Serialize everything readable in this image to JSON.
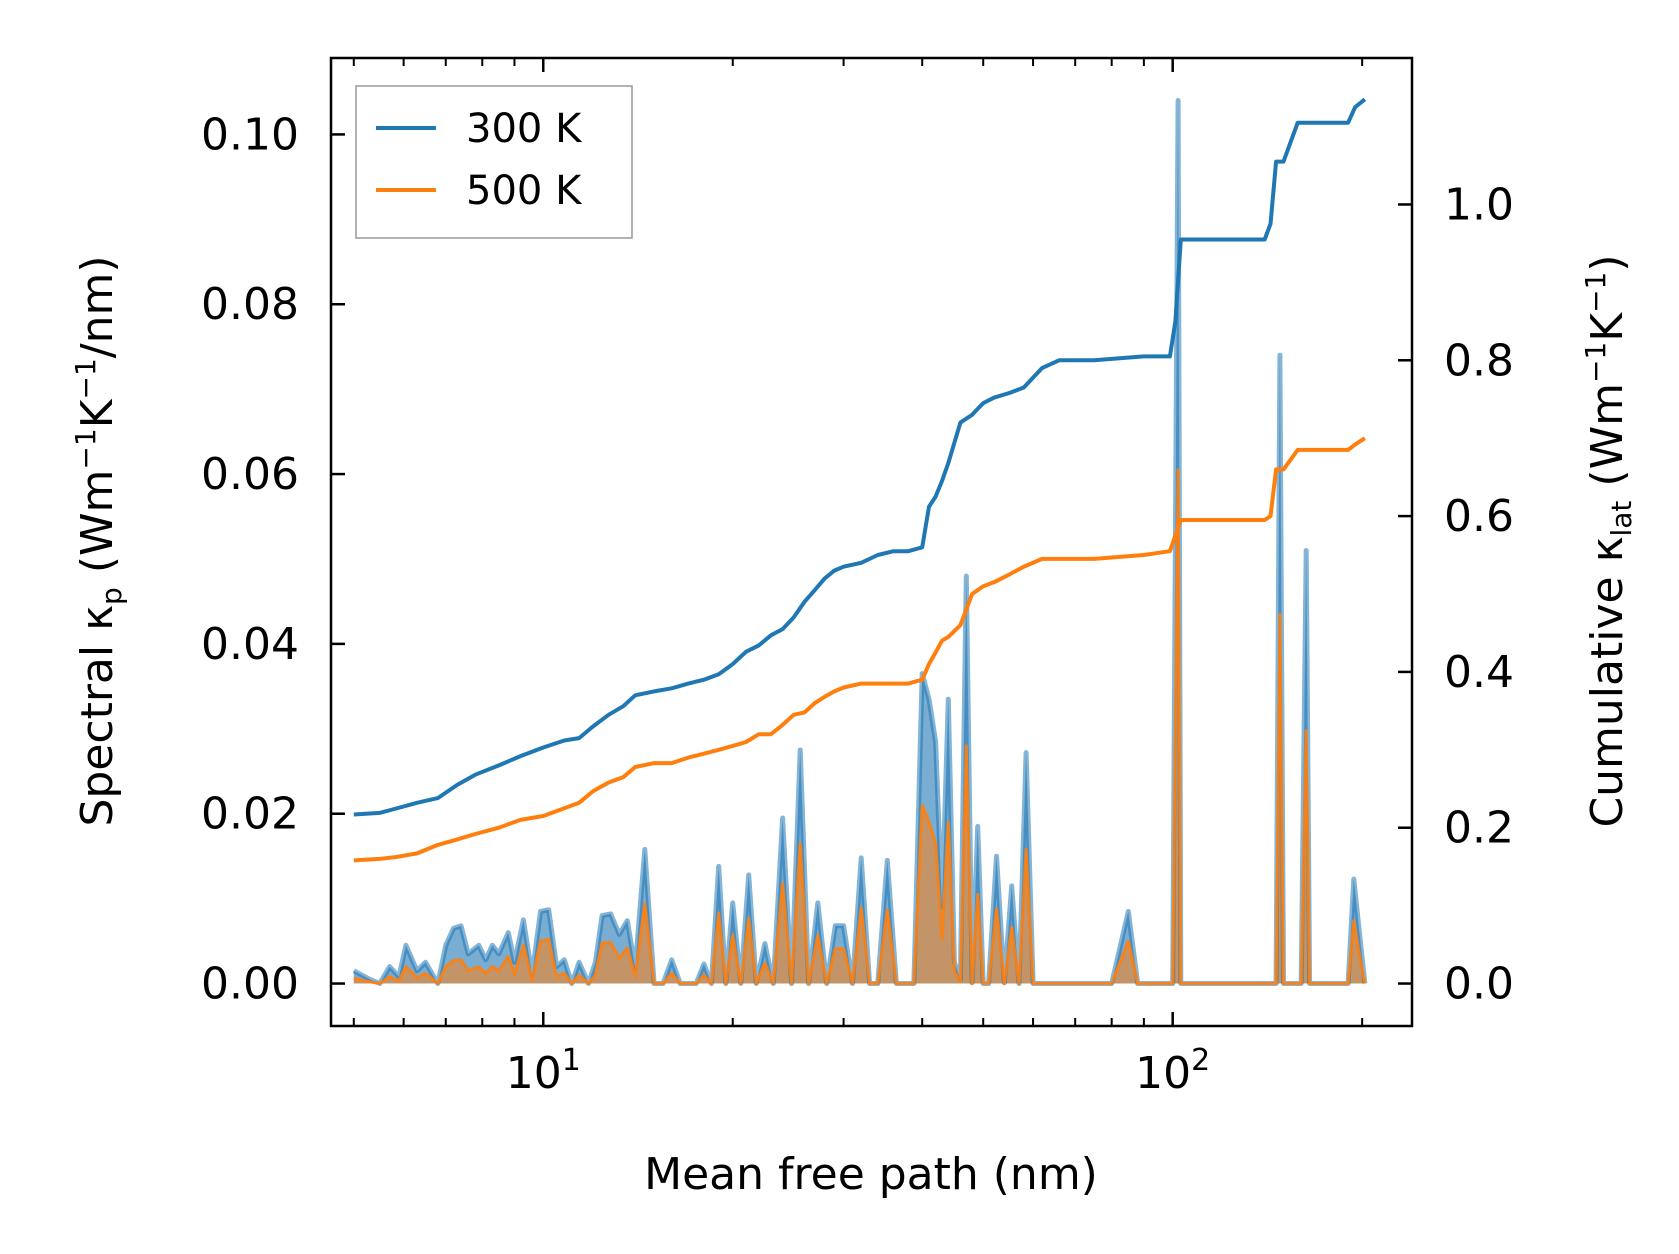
{
  "chart_data": {
    "type": "line",
    "xscale": "log",
    "xlabel": "Mean free path (nm)",
    "ylabel_left": {
      "prefix": "Spectral κ",
      "sub": "p",
      "suffix": " (Wm",
      "sup1": "−1",
      "mid": "K",
      "sup2": "−1",
      "end": "/nm)"
    },
    "ylabel_right": {
      "prefix": "Cumulative κ",
      "sub": "lat",
      "suffix": " (Wm",
      "sup1": "−1",
      "mid": "K",
      "sup2": "−1",
      "end": ")"
    },
    "xlim": [
      4.6,
      240
    ],
    "ylim_left": [
      -0.005,
      0.109
    ],
    "ylim_right": [
      -0.0545,
      1.188
    ],
    "x_major_ticks": [
      {
        "value": 10,
        "base": "10",
        "exp": "1"
      },
      {
        "value": 100,
        "base": "10",
        "exp": "2"
      }
    ],
    "x_minor_ticks": [
      5,
      6,
      7,
      8,
      9,
      20,
      30,
      40,
      50,
      60,
      70,
      80,
      90,
      200
    ],
    "left_ticks": [
      "0.00",
      "0.02",
      "0.04",
      "0.06",
      "0.08",
      "0.10"
    ],
    "right_ticks": [
      "0.0",
      "0.2",
      "0.4",
      "0.6",
      "0.8",
      "1.0"
    ],
    "legend": [
      {
        "label": "300 K",
        "color": "#1f77b4"
      },
      {
        "label": "500 K",
        "color": "#ff7f0e"
      }
    ],
    "spectral_x": [
      5.0,
      5.3,
      5.5,
      5.7,
      5.9,
      6.05,
      6.3,
      6.5,
      6.8,
      7.0,
      7.2,
      7.4,
      7.6,
      7.9,
      8.1,
      8.3,
      8.5,
      8.8,
      9.0,
      9.3,
      9.6,
      9.9,
      10.2,
      10.5,
      10.8,
      11.1,
      11.4,
      11.8,
      12.1,
      12.4,
      12.8,
      13.2,
      13.6,
      14.0,
      14.5,
      15.0,
      15.5,
      16.0,
      16.5,
      17.0,
      17.5,
      18.0,
      18.5,
      19.0,
      19.5,
      20.0,
      20.6,
      21.2,
      21.8,
      22.5,
      23.2,
      24.0,
      24.8,
      25.6,
      26.4,
      27.3,
      28.2,
      29.1,
      30.0,
      31.0,
      32.0,
      33.0,
      34.0,
      35.2,
      36.4,
      37.6,
      38.8,
      40.0,
      41.0,
      42.0,
      43.0,
      44.0,
      45.0,
      46.0,
      47.0,
      48.0,
      49.0,
      50.0,
      51.0,
      52.5,
      54.0,
      55.5,
      57.0,
      58.5,
      60.0,
      62.0,
      64.0,
      65.0,
      66.0,
      68.0,
      70.0,
      75.0,
      80.0,
      85.0,
      88.0,
      90.0,
      92.0,
      95.0,
      99.0,
      100.0,
      102.0,
      103.0,
      105.0,
      106.0,
      108.0,
      110.0,
      120.0,
      130.0,
      140.0,
      144.0,
      146.0,
      148.0,
      150.0,
      152.0,
      156.0,
      160.0,
      163.0,
      165.0,
      167.0,
      170.0,
      180.0,
      190.0,
      194.0,
      198.0,
      202.0
    ],
    "spectral_300": [
      0.0015,
      0.0005,
      0.0,
      0.002,
      0.0008,
      0.0045,
      0.0015,
      0.0025,
      0.0,
      0.0045,
      0.0065,
      0.0068,
      0.0035,
      0.0045,
      0.0028,
      0.0045,
      0.0035,
      0.006,
      0.0025,
      0.0075,
      0.001,
      0.0085,
      0.0087,
      0.002,
      0.0028,
      0.0,
      0.0025,
      0.0,
      0.0025,
      0.008,
      0.0082,
      0.0058,
      0.0074,
      0.0018,
      0.0158,
      0.0,
      0.0,
      0.0028,
      0.0,
      0.0,
      0.0,
      0.0023,
      0.0,
      0.0138,
      0.0,
      0.0095,
      0.0,
      0.0128,
      0.0,
      0.0047,
      0.0,
      0.0195,
      0.0,
      0.0275,
      0.0,
      0.0095,
      0.0,
      0.0068,
      0.0068,
      0.0,
      0.0148,
      0.0,
      0.0,
      0.0145,
      0.0,
      0.0,
      0.0,
      0.0365,
      0.0335,
      0.0285,
      0.009,
      0.0335,
      0.0025,
      0.0005,
      0.048,
      0.0001,
      0.0185,
      0.0,
      0.0,
      0.015,
      0.0001,
      0.0115,
      0.0,
      0.0272,
      0.0,
      0.0,
      0.0,
      0.0,
      0.0,
      0.0,
      0.0,
      0.0,
      0.0,
      0.0085,
      0.0,
      0.0,
      0.0,
      0.0,
      0.0,
      0.0,
      0.104,
      0.0,
      0.0,
      0.0,
      0.0,
      0.0,
      0.0,
      0.0,
      0.0,
      0.0,
      0.0,
      0.074,
      0.0,
      0.0,
      0.0,
      0.0,
      0.051,
      0.0,
      0.0,
      0.0,
      0.0,
      0.0,
      0.0123,
      0.006,
      0.0
    ],
    "spectral_500": [
      0.0006,
      0.0002,
      0.0,
      0.0008,
      0.0003,
      0.002,
      0.0007,
      0.0012,
      0.0,
      0.002,
      0.0027,
      0.0028,
      0.0015,
      0.002,
      0.0012,
      0.002,
      0.0015,
      0.0032,
      0.0011,
      0.0045,
      0.0004,
      0.005,
      0.0052,
      0.0008,
      0.0012,
      0.0,
      0.001,
      0.0,
      0.001,
      0.0048,
      0.0048,
      0.003,
      0.0042,
      0.0008,
      0.0094,
      0.0,
      0.0,
      0.0012,
      0.0,
      0.0,
      0.0,
      0.001,
      0.0,
      0.0083,
      0.0,
      0.0057,
      0.0,
      0.0077,
      0.0,
      0.0024,
      0.0,
      0.0118,
      0.0,
      0.0165,
      0.0,
      0.0057,
      0.0,
      0.0041,
      0.0041,
      0.0,
      0.0089,
      0.0,
      0.0,
      0.0087,
      0.0,
      0.0,
      0.0,
      0.021,
      0.019,
      0.0165,
      0.0052,
      0.019,
      0.0014,
      0.0003,
      0.028,
      0.0,
      0.0105,
      0.0,
      0.0,
      0.0088,
      0.0,
      0.0066,
      0.0,
      0.0158,
      0.0,
      0.0,
      0.0,
      0.0,
      0.0,
      0.0,
      0.0,
      0.0,
      0.0,
      0.005,
      0.0,
      0.0,
      0.0,
      0.0,
      0.0,
      0.0,
      0.0605,
      0.0,
      0.0,
      0.0,
      0.0,
      0.0,
      0.0,
      0.0,
      0.0,
      0.0,
      0.0,
      0.0435,
      0.0,
      0.0,
      0.0,
      0.0,
      0.0298,
      0.0,
      0.0,
      0.0,
      0.0,
      0.0,
      0.0074,
      0.0034,
      0.0
    ],
    "cumulative_x": [
      5.0,
      5.5,
      5.8,
      6.3,
      6.8,
      7.3,
      7.8,
      8.5,
      9.2,
      10.0,
      10.8,
      11.4,
      12.0,
      12.7,
      13.4,
      14.0,
      15.0,
      16.0,
      17.0,
      18.0,
      19.0,
      20.0,
      21.0,
      22.0,
      23.0,
      24.0,
      25.0,
      26.0,
      27.0,
      28.0,
      29.0,
      30.0,
      32.0,
      34.0,
      36.0,
      38.0,
      40.0,
      41.0,
      42.0,
      43.0,
      44.0,
      46.0,
      48.0,
      50.0,
      52.0,
      55.0,
      58.0,
      62.0,
      66.0,
      75.0,
      90.0,
      99.0,
      101.0,
      103.0,
      110.0,
      130.0,
      140.0,
      143.0,
      146.0,
      150.0,
      158.0,
      163.0,
      170.0,
      190.0,
      195.0,
      202.0
    ],
    "cumulative_300": [
      0.217,
      0.219,
      0.224,
      0.232,
      0.238,
      0.255,
      0.268,
      0.28,
      0.292,
      0.303,
      0.312,
      0.315,
      0.33,
      0.345,
      0.356,
      0.37,
      0.375,
      0.379,
      0.385,
      0.39,
      0.397,
      0.41,
      0.426,
      0.434,
      0.447,
      0.455,
      0.47,
      0.49,
      0.505,
      0.52,
      0.53,
      0.535,
      0.54,
      0.55,
      0.555,
      0.555,
      0.56,
      0.612,
      0.625,
      0.645,
      0.668,
      0.72,
      0.73,
      0.745,
      0.752,
      0.758,
      0.765,
      0.79,
      0.8,
      0.8,
      0.805,
      0.805,
      0.85,
      0.955,
      0.955,
      0.955,
      0.955,
      0.975,
      1.055,
      1.055,
      1.105,
      1.105,
      1.105,
      1.105,
      1.125,
      1.135
    ],
    "cumulative_500": [
      0.158,
      0.16,
      0.162,
      0.167,
      0.178,
      0.185,
      0.192,
      0.2,
      0.21,
      0.215,
      0.225,
      0.232,
      0.247,
      0.258,
      0.265,
      0.278,
      0.283,
      0.283,
      0.29,
      0.295,
      0.3,
      0.305,
      0.31,
      0.32,
      0.32,
      0.332,
      0.345,
      0.348,
      0.36,
      0.368,
      0.375,
      0.38,
      0.385,
      0.385,
      0.385,
      0.385,
      0.39,
      0.41,
      0.425,
      0.44,
      0.445,
      0.46,
      0.5,
      0.51,
      0.515,
      0.525,
      0.535,
      0.545,
      0.545,
      0.545,
      0.55,
      0.555,
      0.575,
      0.595,
      0.595,
      0.595,
      0.595,
      0.6,
      0.66,
      0.66,
      0.685,
      0.685,
      0.685,
      0.685,
      0.692,
      0.7
    ]
  }
}
